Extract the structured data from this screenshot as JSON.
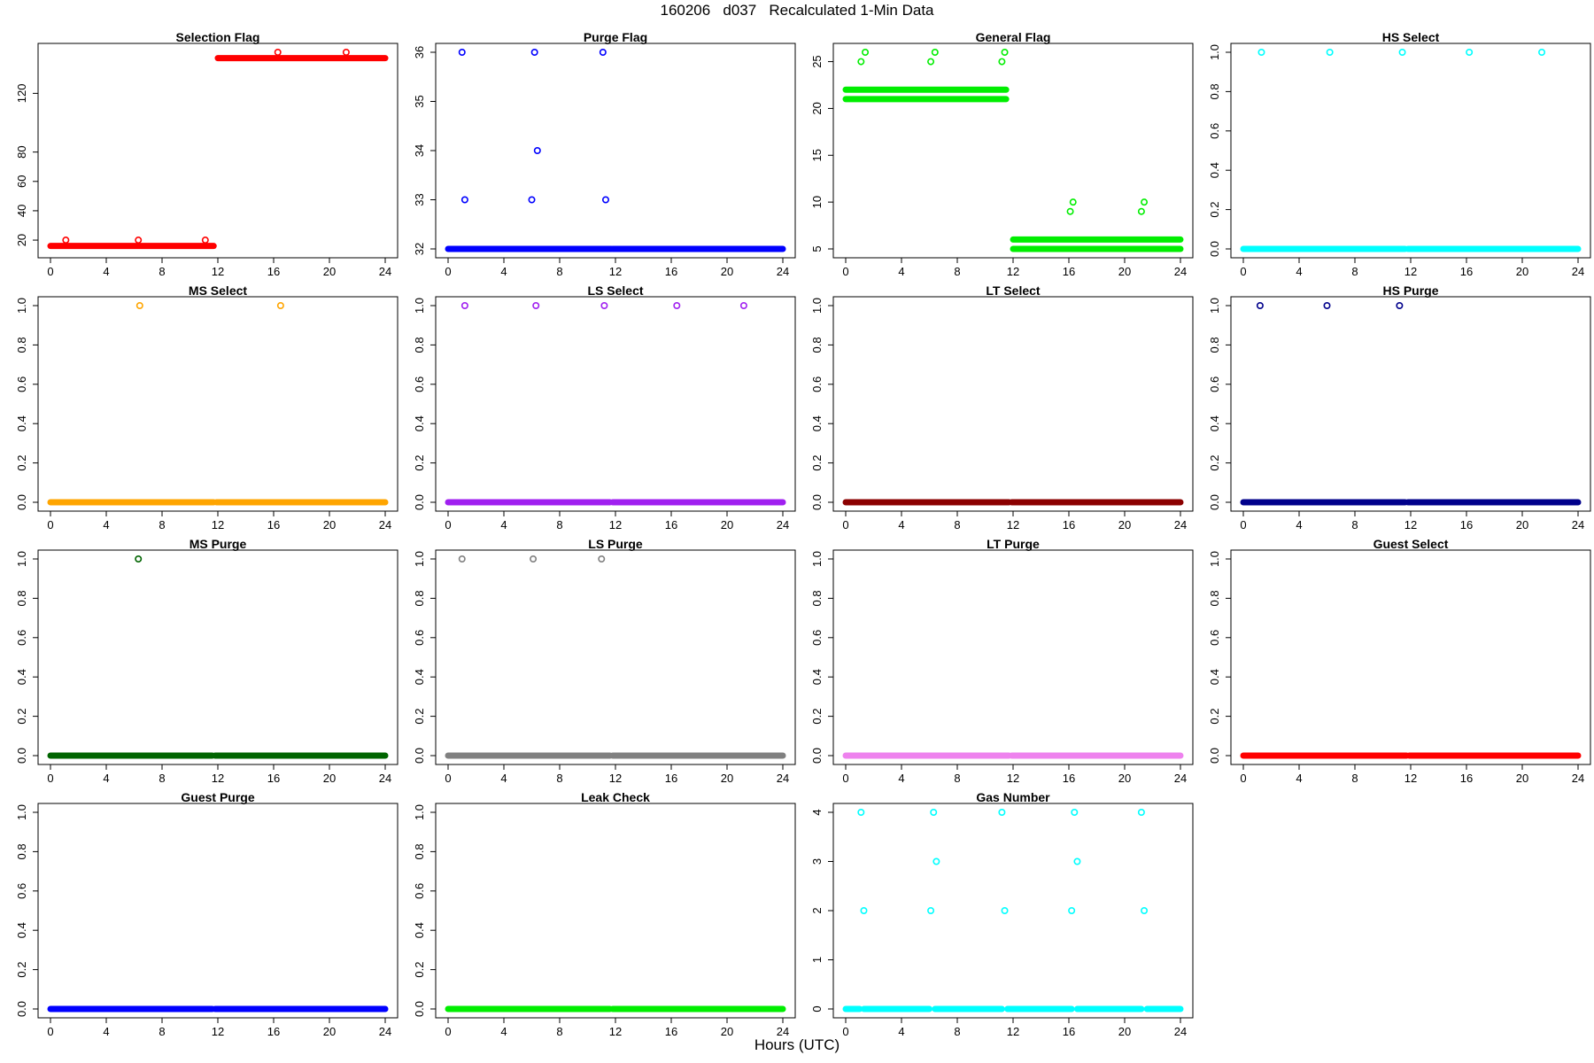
{
  "page": {
    "title": "160206   d037   Recalculated 1-Min Data",
    "xlabel": "Hours (UTC)"
  },
  "chart_data": [
    {
      "type": "scatter",
      "title": "Selection Flag",
      "color": "#ff0000",
      "xlim": [
        0,
        24
      ],
      "ylim": [
        14,
        148
      ],
      "x_ticks": [
        0,
        4,
        8,
        12,
        16,
        20,
        24
      ],
      "x_tick_labels": [
        "0",
        "4",
        "8",
        "12",
        "16",
        "20",
        "24"
      ],
      "y_ticks": [
        20,
        40,
        60,
        80,
        120
      ],
      "y_tick_labels": [
        "20",
        "40",
        "60",
        "80",
        "120"
      ],
      "bands": [
        {
          "x0": 0,
          "x1": 11.7,
          "y": 16
        },
        {
          "x0": 12,
          "x1": 24,
          "y": 144
        }
      ],
      "points": [
        {
          "x": 1.1,
          "y": 20
        },
        {
          "x": 6.3,
          "y": 20
        },
        {
          "x": 11.1,
          "y": 20
        },
        {
          "x": 16.3,
          "y": 148
        },
        {
          "x": 21.2,
          "y": 148
        }
      ]
    },
    {
      "type": "scatter",
      "title": "Purge Flag",
      "color": "#0000ff",
      "xlim": [
        0,
        24
      ],
      "ylim": [
        32,
        36
      ],
      "x_ticks": [
        0,
        4,
        8,
        12,
        16,
        20,
        24
      ],
      "x_tick_labels": [
        "0",
        "4",
        "8",
        "12",
        "16",
        "20",
        "24"
      ],
      "y_ticks": [
        32,
        33,
        34,
        35,
        36
      ],
      "y_tick_labels": [
        "32",
        "33",
        "34",
        "35",
        "36"
      ],
      "bands": [
        {
          "x0": 0,
          "x1": 11.7,
          "y": 32
        },
        {
          "x0": 11.8,
          "x1": 24,
          "y": 32
        }
      ],
      "points": [
        {
          "x": 1.0,
          "y": 36
        },
        {
          "x": 1.2,
          "y": 33
        },
        {
          "x": 6.2,
          "y": 36
        },
        {
          "x": 6.0,
          "y": 33
        },
        {
          "x": 6.4,
          "y": 34
        },
        {
          "x": 11.1,
          "y": 36
        },
        {
          "x": 11.3,
          "y": 33
        }
      ]
    },
    {
      "type": "scatter",
      "title": "General Flag",
      "color": "#00ee00",
      "xlim": [
        0,
        24
      ],
      "ylim": [
        5,
        26
      ],
      "x_ticks": [
        0,
        4,
        8,
        12,
        16,
        20,
        24
      ],
      "x_tick_labels": [
        "0",
        "4",
        "8",
        "12",
        "16",
        "20",
        "24"
      ],
      "y_ticks": [
        5,
        10,
        15,
        20,
        25
      ],
      "y_tick_labels": [
        "5",
        "10",
        "15",
        "20",
        "25"
      ],
      "bands": [
        {
          "x0": 0,
          "x1": 11.5,
          "y": 21
        },
        {
          "x0": 0,
          "x1": 11.5,
          "y": 22
        },
        {
          "x0": 12,
          "x1": 24,
          "y": 5
        },
        {
          "x0": 12,
          "x1": 24,
          "y": 6
        }
      ],
      "points": [
        {
          "x": 1.1,
          "y": 25
        },
        {
          "x": 1.4,
          "y": 26
        },
        {
          "x": 6.1,
          "y": 25
        },
        {
          "x": 6.4,
          "y": 26
        },
        {
          "x": 11.2,
          "y": 25
        },
        {
          "x": 11.4,
          "y": 26
        },
        {
          "x": 16.1,
          "y": 9
        },
        {
          "x": 16.3,
          "y": 10
        },
        {
          "x": 21.2,
          "y": 9
        },
        {
          "x": 21.4,
          "y": 10
        }
      ]
    },
    {
      "type": "scatter",
      "title": "HS Select",
      "color": "#00ffff",
      "xlim": [
        0,
        24
      ],
      "ylim": [
        0,
        1
      ],
      "x_ticks": [
        0,
        4,
        8,
        12,
        16,
        20,
        24
      ],
      "x_tick_labels": [
        "0",
        "4",
        "8",
        "12",
        "16",
        "20",
        "24"
      ],
      "y_ticks": [
        0,
        0.2,
        0.4,
        0.6,
        0.8,
        1.0
      ],
      "y_tick_labels": [
        "0.0",
        "0.2",
        "0.4",
        "0.6",
        "0.8",
        "1.0"
      ],
      "bands": [
        {
          "x0": 0,
          "x1": 11.6,
          "y": 0
        },
        {
          "x0": 11.8,
          "x1": 24,
          "y": 0
        }
      ],
      "points": [
        {
          "x": 1.3,
          "y": 1
        },
        {
          "x": 6.2,
          "y": 1
        },
        {
          "x": 11.4,
          "y": 1
        },
        {
          "x": 16.2,
          "y": 1
        },
        {
          "x": 21.4,
          "y": 1
        }
      ]
    },
    {
      "type": "scatter",
      "title": "MS Select",
      "color": "#ffa500",
      "xlim": [
        0,
        24
      ],
      "ylim": [
        0,
        1
      ],
      "x_ticks": [
        0,
        4,
        8,
        12,
        16,
        20,
        24
      ],
      "x_tick_labels": [
        "0",
        "4",
        "8",
        "12",
        "16",
        "20",
        "24"
      ],
      "y_ticks": [
        0,
        0.2,
        0.4,
        0.6,
        0.8,
        1.0
      ],
      "y_tick_labels": [
        "0.0",
        "0.2",
        "0.4",
        "0.6",
        "0.8",
        "1.0"
      ],
      "bands": [
        {
          "x0": 0,
          "x1": 11.7,
          "y": 0
        },
        {
          "x0": 11.9,
          "x1": 24,
          "y": 0
        }
      ],
      "points": [
        {
          "x": 6.4,
          "y": 1
        },
        {
          "x": 16.5,
          "y": 1
        }
      ]
    },
    {
      "type": "scatter",
      "title": "LS Select",
      "color": "#a020f0",
      "xlim": [
        0,
        24
      ],
      "ylim": [
        0,
        1
      ],
      "x_ticks": [
        0,
        4,
        8,
        12,
        16,
        20,
        24
      ],
      "x_tick_labels": [
        "0",
        "4",
        "8",
        "12",
        "16",
        "20",
        "24"
      ],
      "y_ticks": [
        0,
        0.2,
        0.4,
        0.6,
        0.8,
        1.0
      ],
      "y_tick_labels": [
        "0.0",
        "0.2",
        "0.4",
        "0.6",
        "0.8",
        "1.0"
      ],
      "bands": [
        {
          "x0": 0,
          "x1": 11.6,
          "y": 0
        },
        {
          "x0": 11.8,
          "x1": 24,
          "y": 0
        }
      ],
      "points": [
        {
          "x": 1.2,
          "y": 1
        },
        {
          "x": 6.3,
          "y": 1
        },
        {
          "x": 11.2,
          "y": 1
        },
        {
          "x": 16.4,
          "y": 1
        },
        {
          "x": 21.2,
          "y": 1
        }
      ]
    },
    {
      "type": "scatter",
      "title": "LT Select",
      "color": "#8b0000",
      "xlim": [
        0,
        24
      ],
      "ylim": [
        0,
        1
      ],
      "x_ticks": [
        0,
        4,
        8,
        12,
        16,
        20,
        24
      ],
      "x_tick_labels": [
        "0",
        "4",
        "8",
        "12",
        "16",
        "20",
        "24"
      ],
      "y_ticks": [
        0,
        0.2,
        0.4,
        0.6,
        0.8,
        1.0
      ],
      "y_tick_labels": [
        "0.0",
        "0.2",
        "0.4",
        "0.6",
        "0.8",
        "1.0"
      ],
      "bands": [
        {
          "x0": 0,
          "x1": 11.7,
          "y": 0
        },
        {
          "x0": 11.9,
          "x1": 24,
          "y": 0
        }
      ],
      "points": []
    },
    {
      "type": "scatter",
      "title": "HS Purge",
      "color": "#00008b",
      "xlim": [
        0,
        24
      ],
      "ylim": [
        0,
        1
      ],
      "x_ticks": [
        0,
        4,
        8,
        12,
        16,
        20,
        24
      ],
      "x_tick_labels": [
        "0",
        "4",
        "8",
        "12",
        "16",
        "20",
        "24"
      ],
      "y_ticks": [
        0,
        0.2,
        0.4,
        0.6,
        0.8,
        1.0
      ],
      "y_tick_labels": [
        "0.0",
        "0.2",
        "0.4",
        "0.6",
        "0.8",
        "1.0"
      ],
      "bands": [
        {
          "x0": 0,
          "x1": 11.6,
          "y": 0
        },
        {
          "x0": 11.8,
          "x1": 24,
          "y": 0
        }
      ],
      "points": [
        {
          "x": 1.2,
          "y": 1
        },
        {
          "x": 6.0,
          "y": 1
        },
        {
          "x": 11.2,
          "y": 1
        }
      ]
    },
    {
      "type": "scatter",
      "title": "MS Purge",
      "color": "#006400",
      "xlim": [
        0,
        24
      ],
      "ylim": [
        0,
        1
      ],
      "x_ticks": [
        0,
        4,
        8,
        12,
        16,
        20,
        24
      ],
      "x_tick_labels": [
        "0",
        "4",
        "8",
        "12",
        "16",
        "20",
        "24"
      ],
      "y_ticks": [
        0,
        0.2,
        0.4,
        0.6,
        0.8,
        1.0
      ],
      "y_tick_labels": [
        "0.0",
        "0.2",
        "0.4",
        "0.6",
        "0.8",
        "1.0"
      ],
      "bands": [
        {
          "x0": 0,
          "x1": 11.6,
          "y": 0
        },
        {
          "x0": 11.8,
          "x1": 24,
          "y": 0
        }
      ],
      "points": [
        {
          "x": 6.3,
          "y": 1
        }
      ]
    },
    {
      "type": "scatter",
      "title": "LS Purge",
      "color": "#808080",
      "xlim": [
        0,
        24
      ],
      "ylim": [
        0,
        1
      ],
      "x_ticks": [
        0,
        4,
        8,
        12,
        16,
        20,
        24
      ],
      "x_tick_labels": [
        "0",
        "4",
        "8",
        "12",
        "16",
        "20",
        "24"
      ],
      "y_ticks": [
        0,
        0.2,
        0.4,
        0.6,
        0.8,
        1.0
      ],
      "y_tick_labels": [
        "0.0",
        "0.2",
        "0.4",
        "0.6",
        "0.8",
        "1.0"
      ],
      "bands": [
        {
          "x0": 0,
          "x1": 11.6,
          "y": 0
        },
        {
          "x0": 11.8,
          "x1": 24,
          "y": 0
        }
      ],
      "points": [
        {
          "x": 1.0,
          "y": 1
        },
        {
          "x": 6.1,
          "y": 1
        },
        {
          "x": 11.0,
          "y": 1
        }
      ]
    },
    {
      "type": "scatter",
      "title": "LT Purge",
      "color": "#ee82ee",
      "xlim": [
        0,
        24
      ],
      "ylim": [
        0,
        1
      ],
      "x_ticks": [
        0,
        4,
        8,
        12,
        16,
        20,
        24
      ],
      "x_tick_labels": [
        "0",
        "4",
        "8",
        "12",
        "16",
        "20",
        "24"
      ],
      "y_ticks": [
        0,
        0.2,
        0.4,
        0.6,
        0.8,
        1.0
      ],
      "y_tick_labels": [
        "0.0",
        "0.2",
        "0.4",
        "0.6",
        "0.8",
        "1.0"
      ],
      "bands": [
        {
          "x0": 0,
          "x1": 11.7,
          "y": 0
        },
        {
          "x0": 11.9,
          "x1": 24,
          "y": 0
        }
      ],
      "points": []
    },
    {
      "type": "scatter",
      "title": "Guest Select",
      "color": "#ff0000",
      "xlim": [
        0,
        24
      ],
      "ylim": [
        0,
        1
      ],
      "x_ticks": [
        0,
        4,
        8,
        12,
        16,
        20,
        24
      ],
      "x_tick_labels": [
        "0",
        "4",
        "8",
        "12",
        "16",
        "20",
        "24"
      ],
      "y_ticks": [
        0,
        0.2,
        0.4,
        0.6,
        0.8,
        1.0
      ],
      "y_tick_labels": [
        "0.0",
        "0.2",
        "0.4",
        "0.6",
        "0.8",
        "1.0"
      ],
      "bands": [
        {
          "x0": 0,
          "x1": 11.7,
          "y": 0
        },
        {
          "x0": 11.9,
          "x1": 24,
          "y": 0
        }
      ],
      "points": []
    },
    {
      "type": "scatter",
      "title": "Guest Purge",
      "color": "#0000ff",
      "xlim": [
        0,
        24
      ],
      "ylim": [
        0,
        1
      ],
      "x_ticks": [
        0,
        4,
        8,
        12,
        16,
        20,
        24
      ],
      "x_tick_labels": [
        "0",
        "4",
        "8",
        "12",
        "16",
        "20",
        "24"
      ],
      "y_ticks": [
        0,
        0.2,
        0.4,
        0.6,
        0.8,
        1.0
      ],
      "y_tick_labels": [
        "0.0",
        "0.2",
        "0.4",
        "0.6",
        "0.8",
        "1.0"
      ],
      "bands": [
        {
          "x0": 0,
          "x1": 11.6,
          "y": 0
        },
        {
          "x0": 11.8,
          "x1": 24,
          "y": 0
        }
      ],
      "points": []
    },
    {
      "type": "scatter",
      "title": "Leak Check",
      "color": "#00ee00",
      "xlim": [
        0,
        24
      ],
      "ylim": [
        0,
        1
      ],
      "x_ticks": [
        0,
        4,
        8,
        12,
        16,
        20,
        24
      ],
      "x_tick_labels": [
        "0",
        "4",
        "8",
        "12",
        "16",
        "20",
        "24"
      ],
      "y_ticks": [
        0,
        0.2,
        0.4,
        0.6,
        0.8,
        1.0
      ],
      "y_tick_labels": [
        "0.0",
        "0.2",
        "0.4",
        "0.6",
        "0.8",
        "1.0"
      ],
      "bands": [
        {
          "x0": 0,
          "x1": 11.6,
          "y": 0
        },
        {
          "x0": 11.8,
          "x1": 24,
          "y": 0
        }
      ],
      "points": []
    },
    {
      "type": "scatter",
      "title": "Gas Number",
      "color": "#00ffff",
      "xlim": [
        0,
        24
      ],
      "ylim": [
        0,
        4
      ],
      "x_ticks": [
        0,
        4,
        8,
        12,
        16,
        20,
        24
      ],
      "x_tick_labels": [
        "0",
        "4",
        "8",
        "12",
        "16",
        "20",
        "24"
      ],
      "y_ticks": [
        0,
        1,
        2,
        3,
        4
      ],
      "y_tick_labels": [
        "0",
        "1",
        "2",
        "3",
        "4"
      ],
      "bands": [
        {
          "x0": 0,
          "x1": 1.0,
          "y": 0
        },
        {
          "x0": 1.3,
          "x1": 6.0,
          "y": 0
        },
        {
          "x0": 6.4,
          "x1": 11.2,
          "y": 0
        },
        {
          "x0": 11.6,
          "x1": 16.2,
          "y": 0
        },
        {
          "x0": 16.6,
          "x1": 21.2,
          "y": 0
        },
        {
          "x0": 21.6,
          "x1": 24,
          "y": 0
        }
      ],
      "points": [
        {
          "x": 1.1,
          "y": 4
        },
        {
          "x": 1.3,
          "y": 2
        },
        {
          "x": 6.1,
          "y": 2
        },
        {
          "x": 6.3,
          "y": 4
        },
        {
          "x": 6.5,
          "y": 3
        },
        {
          "x": 11.2,
          "y": 4
        },
        {
          "x": 11.4,
          "y": 2
        },
        {
          "x": 16.2,
          "y": 2
        },
        {
          "x": 16.4,
          "y": 4
        },
        {
          "x": 16.6,
          "y": 3
        },
        {
          "x": 21.2,
          "y": 4
        },
        {
          "x": 21.4,
          "y": 2
        }
      ]
    }
  ]
}
